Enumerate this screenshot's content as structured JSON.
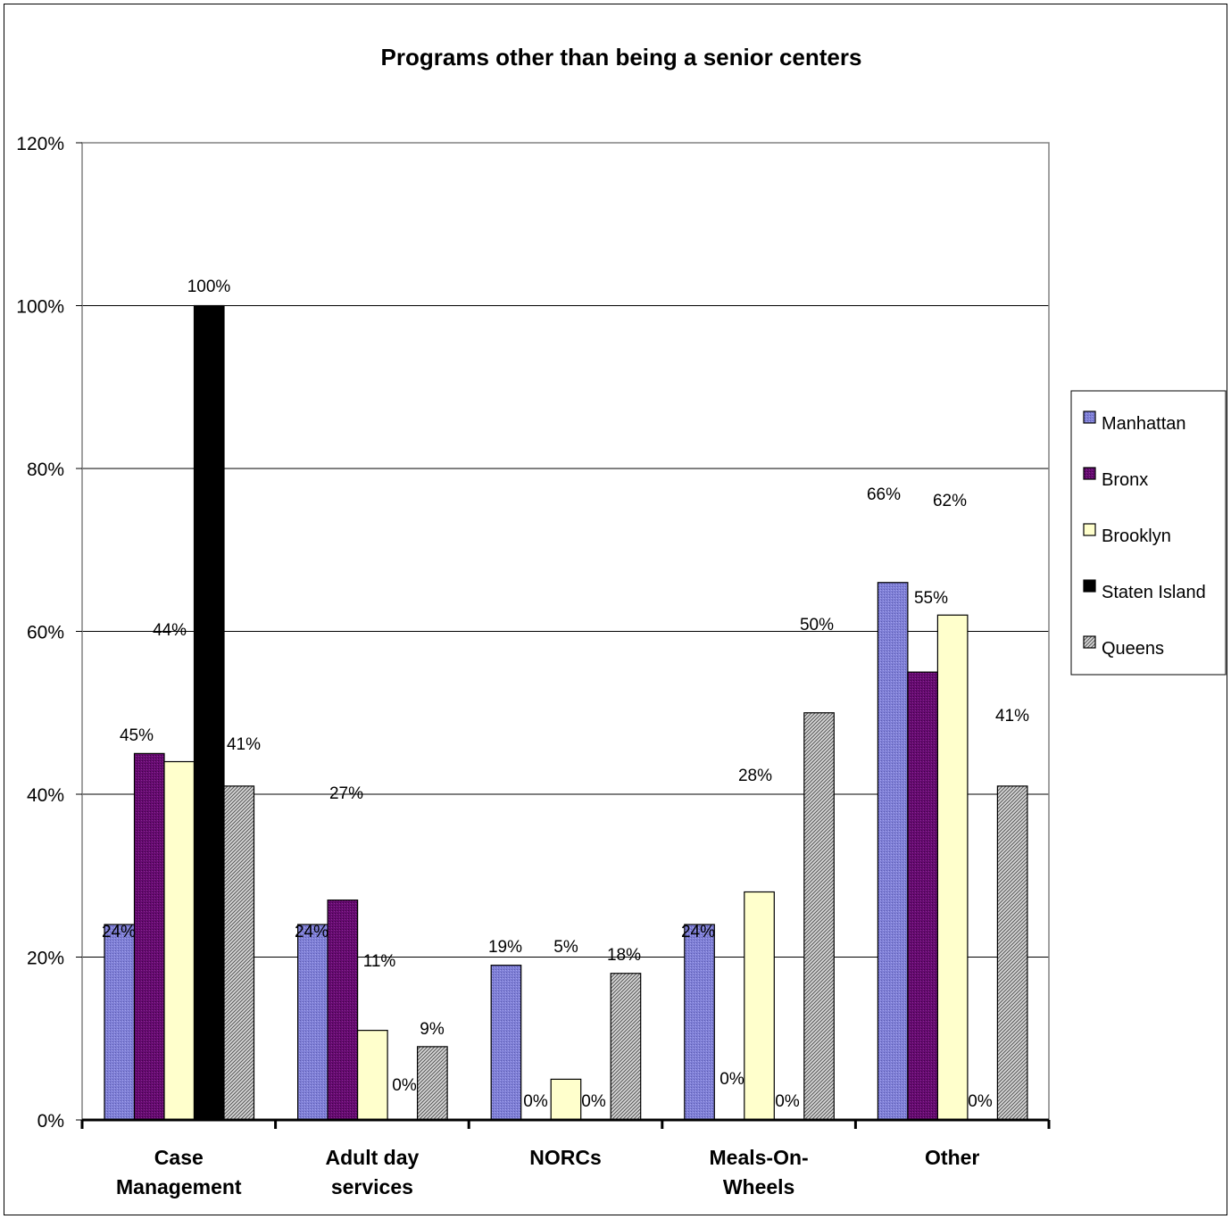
{
  "chart_data": {
    "type": "bar",
    "title": "Programs other than being a senior centers",
    "xlabel": "",
    "ylabel": "",
    "ylim": [
      0,
      1.2
    ],
    "yticks": [
      0,
      0.2,
      0.4,
      0.6,
      0.8,
      1.0,
      1.2
    ],
    "ytick_labels": [
      "0%",
      "20%",
      "40%",
      "60%",
      "80%",
      "100%",
      "120%"
    ],
    "grid": true,
    "legend_position": "right",
    "categories": [
      [
        "Case",
        "Management"
      ],
      [
        "Adult day",
        "services"
      ],
      [
        "NORCs"
      ],
      [
        "Meals-On-",
        "Wheels"
      ],
      [
        "Other"
      ]
    ],
    "series": [
      {
        "name": "Manhattan",
        "color": "#7f7fd6",
        "pattern": "dots",
        "values": [
          0.24,
          0.24,
          0.19,
          0.24,
          0.66
        ],
        "labels": [
          "24%",
          "24%",
          "19%",
          "24%",
          "66%"
        ]
      },
      {
        "name": "Bronx",
        "color": "#660a70",
        "pattern": "dots",
        "values": [
          0.45,
          0.27,
          0.0,
          0.0,
          0.55
        ],
        "labels": [
          "45%",
          "27%",
          "0%",
          "0%",
          "55%"
        ]
      },
      {
        "name": "Brooklyn",
        "color": "#ffffcc",
        "pattern": "none",
        "values": [
          0.44,
          0.11,
          0.05,
          0.28,
          0.62
        ],
        "labels": [
          "44%",
          "11%",
          "5%",
          "28%",
          "62%"
        ]
      },
      {
        "name": "Staten Island",
        "color": "#000000",
        "pattern": "none",
        "values": [
          1.0,
          0.0,
          0.0,
          0.0,
          0.0
        ],
        "labels": [
          "100%",
          "0%",
          "0%",
          "0%",
          "0%"
        ]
      },
      {
        "name": "Queens",
        "color": "#c0c0c0",
        "pattern": "hatch",
        "values": [
          0.41,
          0.09,
          0.18,
          0.5,
          0.41
        ],
        "labels": [
          "41%",
          "9%",
          "18%",
          "50%",
          "41%"
        ]
      }
    ]
  }
}
